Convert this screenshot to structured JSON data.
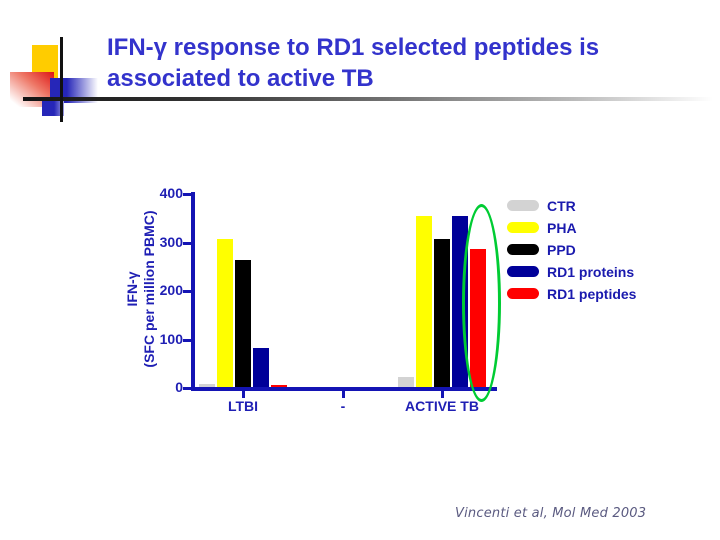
{
  "slide": {
    "title_line1": "IFN-γ response to RD1 selected peptides is",
    "title_line2": "associated to active TB",
    "citation": "Vincenti et al, Mol Med 2003"
  },
  "colors": {
    "title": "#3333cc",
    "chart_text": "#1f1fb4",
    "axis": "#1414b4",
    "legend_text": "#1a1aae",
    "citation": "#5a5a80",
    "highlight_ellipse": "#00cc33"
  },
  "chart_data": {
    "type": "bar",
    "title": "",
    "ylabel_line1": "IFN-γ",
    "ylabel_line2": "(SFC per million PBMC)",
    "xlabel": "",
    "ylim": [
      0,
      400
    ],
    "yticks": [
      0,
      100,
      200,
      300,
      400
    ],
    "grid": false,
    "legend_position": "right",
    "categories": [
      "LTBI",
      "-",
      "ACTIVE TB"
    ],
    "series": [
      {
        "name": "CTR",
        "color": "#d3d3d3",
        "values": [
          6,
          0,
          20
        ]
      },
      {
        "name": "PHA",
        "color": "#ffff00",
        "values": [
          305,
          0,
          352
        ]
      },
      {
        "name": "PPD",
        "color": "#000000",
        "values": [
          262,
          0,
          305
        ]
      },
      {
        "name": "RD1 proteins",
        "color": "#000099",
        "values": [
          80,
          0,
          352
        ]
      },
      {
        "name": "RD1 peptides",
        "color": "#ff0000",
        "values": [
          5,
          0,
          285
        ]
      }
    ],
    "annotation": {
      "type": "ellipse",
      "target": "RD1 peptides bar in ACTIVE TB group",
      "color": "#00cc33"
    }
  }
}
